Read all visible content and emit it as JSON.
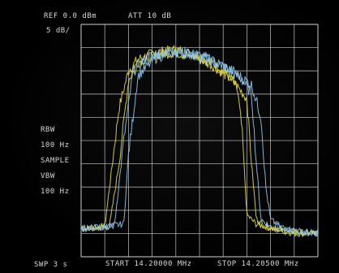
{
  "header": {
    "ref": "REF  0.0 dBm",
    "atten": "ATT 10 dB",
    "scale": "5 dB/"
  },
  "settings": {
    "rbw_label": "RBW",
    "rbw_value": "100 Hz",
    "detector": "SAMPLE",
    "vbw_label": "VBW",
    "vbw_value": "100 Hz"
  },
  "footer": {
    "sweep": "SWP 3 s",
    "start": "START 14.20000 MHz",
    "stop": "STOP 14.20500 MHz"
  },
  "colors": {
    "grid": "#c8c8c8",
    "background": "#000000",
    "trace_yellow": "#e6d84a",
    "trace_blue": "#8fc8ee",
    "text": "#d8d8d8"
  },
  "chart_data": {
    "type": "line",
    "x_unit": "MHz",
    "xlim": [
      14.2,
      14.205
    ],
    "ylim": [
      -50,
      0
    ],
    "grid": true,
    "divisions": {
      "x": 10,
      "y": 10
    },
    "series": [
      {
        "color": "yellow",
        "x": [
          14.2,
          14.2005,
          14.2008,
          14.201,
          14.2012,
          14.2016,
          14.202,
          14.2024,
          14.2028,
          14.2031,
          14.2033,
          14.2034,
          14.2035,
          14.2037,
          14.2041,
          14.2045,
          14.205
        ],
        "y": [
          -44,
          -43.5,
          -18,
          -10,
          -7.5,
          -6,
          -5.5,
          -6.5,
          -8.5,
          -11,
          -14,
          -23,
          -41,
          -43,
          -44,
          -45,
          -45
        ]
      },
      {
        "color": "yellow",
        "x": [
          14.2,
          14.2006,
          14.2008,
          14.201,
          14.2012,
          14.2016,
          14.202,
          14.2024,
          14.2028,
          14.2032,
          14.2035,
          14.2036,
          14.2037,
          14.2039,
          14.2043,
          14.205
        ],
        "y": [
          -44,
          -43.5,
          -30,
          -12,
          -8,
          -6.5,
          -6,
          -7,
          -9,
          -12,
          -16,
          -30,
          -42,
          -43.5,
          -44.5,
          -45
        ]
      },
      {
        "color": "blue",
        "x": [
          14.2,
          14.2007,
          14.2009,
          14.2011,
          14.2014,
          14.2018,
          14.2022,
          14.2026,
          14.203,
          14.2034,
          14.2036,
          14.2037,
          14.2038,
          14.204,
          14.2044,
          14.205
        ],
        "y": [
          -44,
          -43.5,
          -25,
          -10,
          -7,
          -6,
          -6,
          -7,
          -9,
          -12,
          -15,
          -30,
          -42,
          -43.5,
          -44.5,
          -45
        ]
      },
      {
        "color": "blue",
        "x": [
          14.2,
          14.2009,
          14.201,
          14.2012,
          14.2016,
          14.202,
          14.2024,
          14.2028,
          14.2032,
          14.2036,
          14.2038,
          14.2039,
          14.204,
          14.2042,
          14.2046,
          14.205
        ],
        "y": [
          -44,
          -43,
          -28,
          -11,
          -7,
          -6,
          -6.5,
          -8,
          -10,
          -13,
          -20,
          -35,
          -42,
          -43.5,
          -44.5,
          -45
        ]
      }
    ]
  }
}
